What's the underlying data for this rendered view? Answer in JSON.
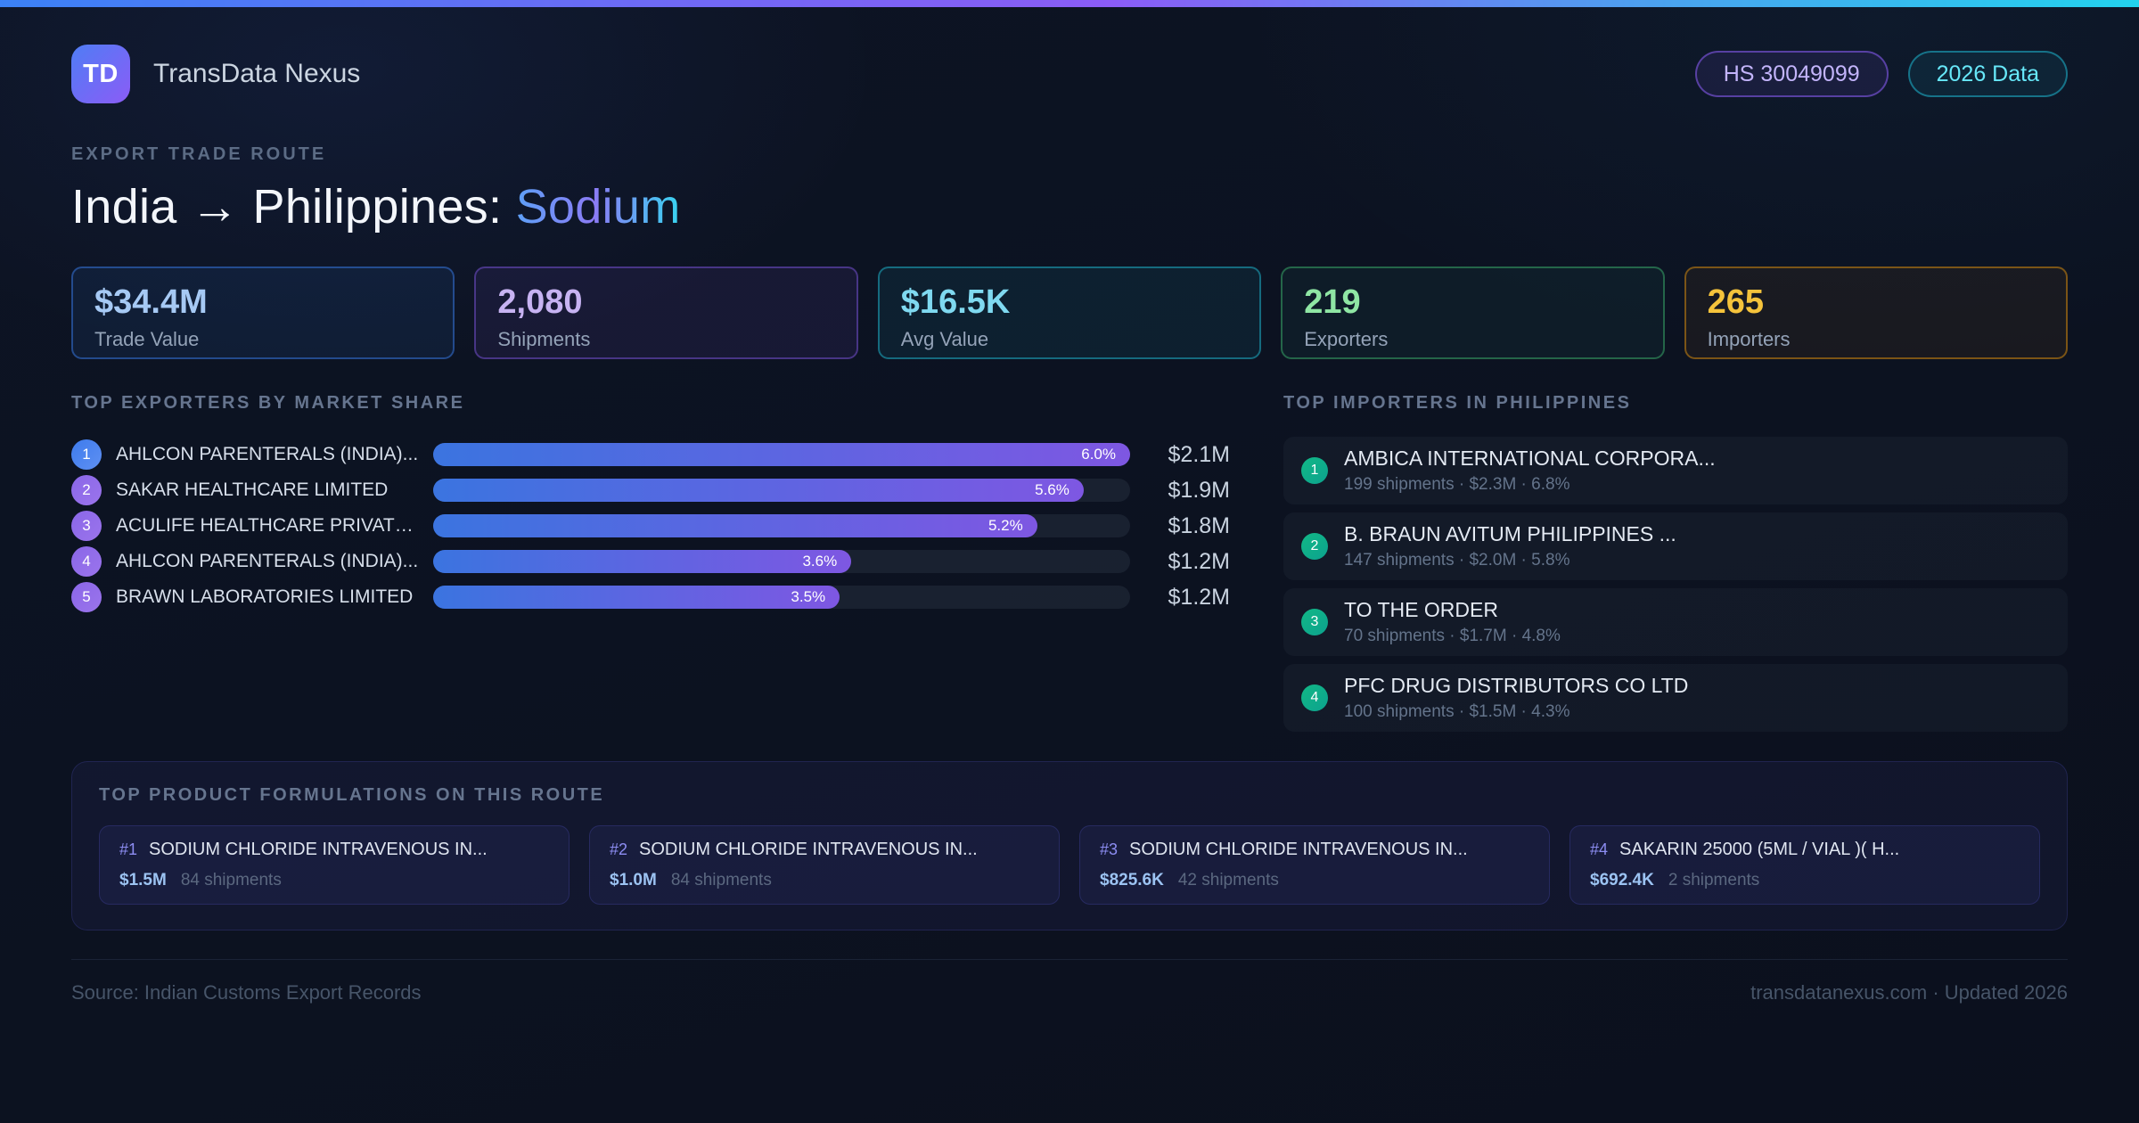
{
  "brand": {
    "logo": "TD",
    "name": "TransData Nexus"
  },
  "header_badges": {
    "hs_code": "HS 30049099",
    "year": "2026 Data"
  },
  "hero": {
    "eyebrow": "EXPORT TRADE ROUTE",
    "title_main": "India → Philippines: ",
    "title_accent": "Sodium"
  },
  "stats": [
    {
      "value": "$34.4M",
      "label": "Trade Value",
      "accent": "#a6c9f4"
    },
    {
      "value": "2,080",
      "label": "Shipments",
      "accent": "#c7b3f2"
    },
    {
      "value": "$16.5K",
      "label": "Avg Value",
      "accent": "#7fd9f0"
    },
    {
      "value": "219",
      "label": "Exporters",
      "accent": "#8fe6a4"
    },
    {
      "value": "265",
      "label": "Importers",
      "accent": "#f5c33b"
    }
  ],
  "exporters": {
    "heading": "TOP EXPORTERS BY MARKET SHARE",
    "max_share_pct": 6.0,
    "rows": [
      {
        "rank": "1",
        "name": "AHLCON PARENTERALS (INDIA)...",
        "share_pct": 6.0,
        "share_label": "6.0%",
        "value": "$2.1M"
      },
      {
        "rank": "2",
        "name": "SAKAR HEALTHCARE LIMITED",
        "share_pct": 5.6,
        "share_label": "5.6%",
        "value": "$1.9M"
      },
      {
        "rank": "3",
        "name": "ACULIFE HEALTHCARE PRIVATE...",
        "share_pct": 5.2,
        "share_label": "5.2%",
        "value": "$1.8M"
      },
      {
        "rank": "4",
        "name": "AHLCON PARENTERALS (INDIA)...",
        "share_pct": 3.6,
        "share_label": "3.6%",
        "value": "$1.2M"
      },
      {
        "rank": "5",
        "name": "BRAWN LABORATORIES LIMITED",
        "share_pct": 3.5,
        "share_label": "3.5%",
        "value": "$1.2M"
      }
    ]
  },
  "importers": {
    "heading": "TOP IMPORTERS IN PHILIPPINES",
    "rows": [
      {
        "rank": "1",
        "name": "AMBICA INTERNATIONAL CORPORA...",
        "meta": "199 shipments · $2.3M · 6.8%"
      },
      {
        "rank": "2",
        "name": "B. BRAUN AVITUM PHILIPPINES ...",
        "meta": "147 shipments · $2.0M · 5.8%"
      },
      {
        "rank": "3",
        "name": "TO THE ORDER",
        "meta": "70 shipments · $1.7M · 4.8%"
      },
      {
        "rank": "4",
        "name": "PFC DRUG DISTRIBUTORS CO LTD",
        "meta": "100 shipments · $1.5M · 4.3%"
      }
    ]
  },
  "products": {
    "heading": "TOP PRODUCT FORMULATIONS ON THIS ROUTE",
    "cards": [
      {
        "rank": "#1",
        "name": "SODIUM CHLORIDE INTRAVENOUS IN...",
        "value": "$1.5M",
        "shipments": "84 shipments"
      },
      {
        "rank": "#2",
        "name": "SODIUM CHLORIDE INTRAVENOUS IN...",
        "value": "$1.0M",
        "shipments": "84 shipments"
      },
      {
        "rank": "#3",
        "name": "SODIUM CHLORIDE INTRAVENOUS IN...",
        "value": "$825.6K",
        "shipments": "42 shipments"
      },
      {
        "rank": "#4",
        "name": "SAKARIN 25000 (5ML / VIAL )( H...",
        "value": "$692.4K",
        "shipments": "2 shipments"
      }
    ]
  },
  "footer": {
    "source": "Source: Indian Customs Export Records",
    "site": "transdatanexus.com · Updated 2026"
  },
  "colors": {
    "topbar_gradient": [
      "#3b82f6",
      "#8b5cf6",
      "#22d3ee"
    ],
    "bar_fill_gradient": [
      "#3b74e0",
      "#7e57e2"
    ],
    "importer_badge": "#10b981",
    "page_background": "#0c1220"
  }
}
